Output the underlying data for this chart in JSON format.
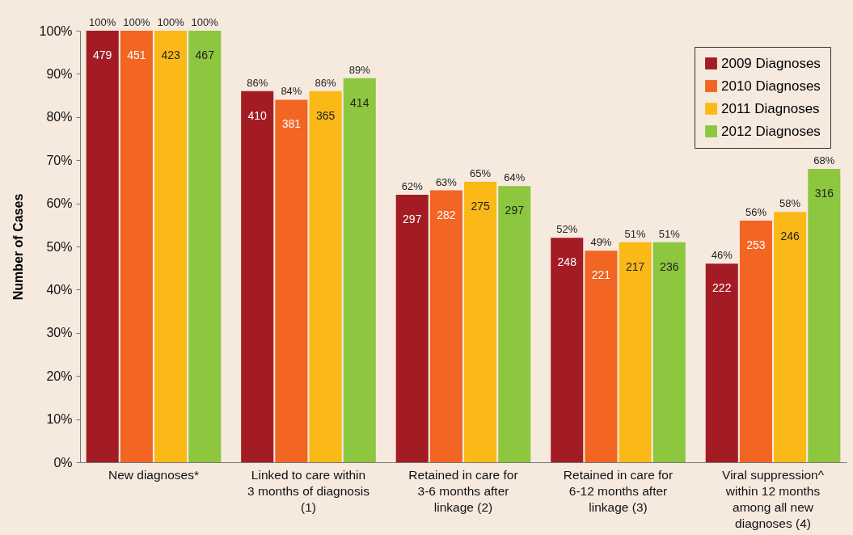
{
  "chart_data": {
    "type": "bar",
    "ylabel": "Number of Cases",
    "categories": [
      "New diagnoses*",
      "Linked to care within 3 months of diagnosis (1)",
      "Retained in care for 3-6 months after linkage (2)",
      "Retained in care for 6-12 months after linkage (3)",
      "Viral suppression^ within 12 months among all new diagnoses (4)"
    ],
    "series": [
      {
        "name": "2009 Diagnoses",
        "color": "#a31c24",
        "values": [
          100,
          86,
          62,
          52,
          46
        ],
        "value_labels": [
          "100%",
          "86%",
          "62%",
          "52%",
          "46%"
        ]
      },
      {
        "name": "2010 Diagnoses",
        "color": "#f26522",
        "values": [
          100,
          84,
          63,
          49,
          56
        ],
        "value_labels": [
          "100%",
          "84%",
          "63%",
          "49%",
          "56%"
        ]
      },
      {
        "name": "2011 Diagnoses",
        "color": "#fbb917",
        "values": [
          100,
          86,
          65,
          51,
          58
        ],
        "value_labels": [
          "100%",
          "86%",
          "65%",
          "51%",
          "58%"
        ]
      },
      {
        "name": "2012 Diagnoses",
        "color": "#8dc63f",
        "values": [
          100,
          89,
          64,
          51,
          68
        ],
        "value_labels": [
          "100%",
          "89%",
          "64%",
          "51%",
          "68%"
        ]
      }
    ],
    "annotations": [
      "479",
      "410",
      "297",
      "248",
      "222",
      "451",
      "381",
      "282",
      "221",
      "253",
      "423",
      "365",
      "275",
      "217",
      "246",
      "467",
      "414",
      "297",
      "236",
      "316"
    ],
    "ylim": [
      0,
      100
    ],
    "yticks": [
      {
        "value": 0,
        "label": "0%"
      },
      {
        "value": 10,
        "label": "10%"
      },
      {
        "value": 20,
        "label": "20%"
      },
      {
        "value": 30,
        "label": "30%"
      },
      {
        "value": 40,
        "label": "40%"
      },
      {
        "value": 50,
        "label": "50%"
      },
      {
        "value": 60,
        "label": "60%"
      },
      {
        "value": 70,
        "label": "70%"
      },
      {
        "value": 80,
        "label": "80%"
      },
      {
        "value": 90,
        "label": "90%"
      },
      {
        "value": 100,
        "label": "100%"
      }
    ],
    "legend": "top right"
  }
}
